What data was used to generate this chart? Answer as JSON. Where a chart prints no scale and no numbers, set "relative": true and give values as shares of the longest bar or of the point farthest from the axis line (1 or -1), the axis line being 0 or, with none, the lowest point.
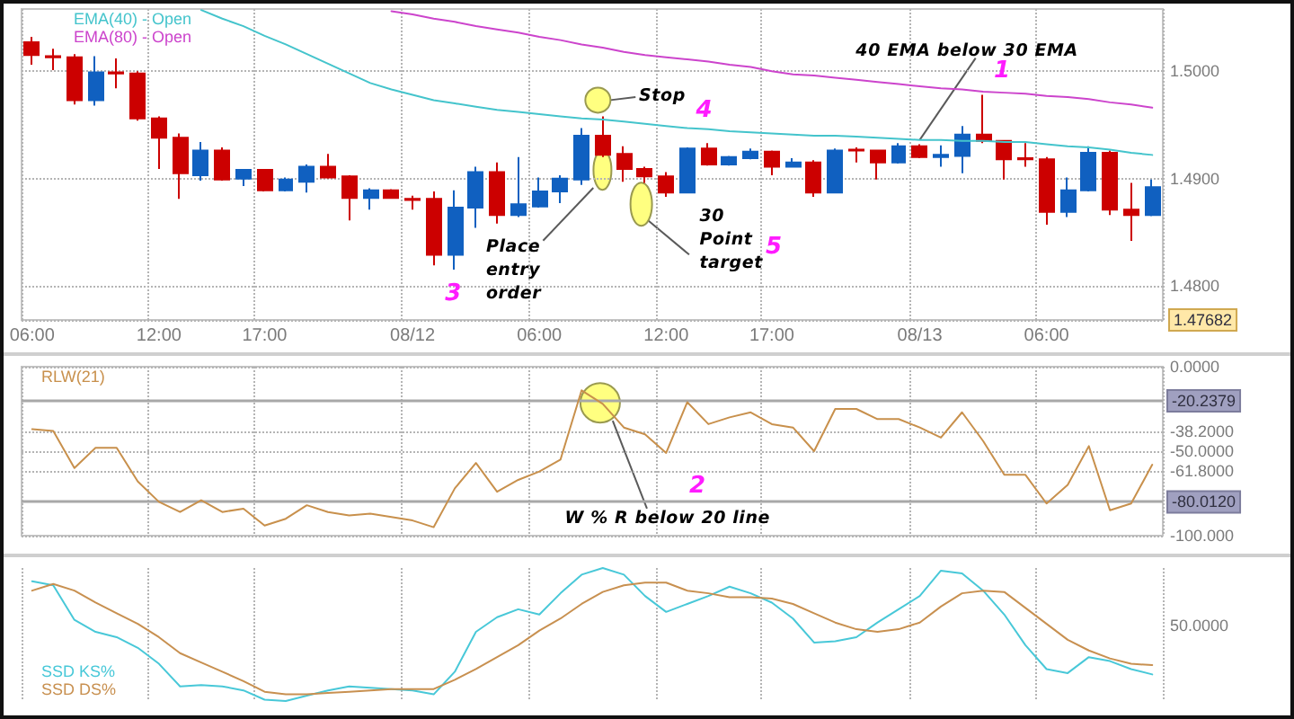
{
  "chart_data": [
    {
      "type": "candlestick",
      "categories": [
        "06:00",
        null,
        null,
        null,
        null,
        null,
        "12:00",
        null,
        null,
        null,
        null,
        "17:00",
        null,
        null,
        null,
        null,
        null,
        null,
        "08/12",
        null,
        null,
        null,
        null,
        null,
        "06:00",
        null,
        null,
        null,
        null,
        null,
        "12:00",
        null,
        null,
        null,
        null,
        "17:00",
        null,
        null,
        null,
        null,
        null,
        null,
        "08/13",
        null,
        null,
        null,
        null,
        null,
        "06:00",
        null,
        null,
        null,
        null,
        null
      ],
      "ohlc": [
        [
          1.5027,
          1.5032,
          1.5006,
          1.5015
        ],
        [
          1.5014,
          1.5021,
          1.5001,
          1.5013
        ],
        [
          1.5013,
          1.5016,
          1.4969,
          1.4973
        ],
        [
          1.4973,
          1.5014,
          1.4968,
          1.4999
        ],
        [
          1.4999,
          1.5012,
          1.4984,
          1.4998
        ],
        [
          1.4998,
          1.5,
          1.4954,
          1.4956
        ],
        [
          1.4956,
          1.4958,
          1.4909,
          1.4938
        ],
        [
          1.4938,
          1.4942,
          1.4881,
          1.4905
        ],
        [
          1.4903,
          1.4934,
          1.4898,
          1.4926
        ],
        [
          1.4926,
          1.4929,
          1.4898,
          1.4899
        ],
        [
          1.49,
          1.4909,
          1.4893,
          1.4908
        ],
        [
          1.4908,
          1.4909,
          1.4888,
          1.4889
        ],
        [
          1.4889,
          1.4901,
          1.4888,
          1.4899
        ],
        [
          1.4897,
          1.4913,
          1.4887,
          1.4911
        ],
        [
          1.4911,
          1.4923,
          1.49,
          1.4901
        ],
        [
          1.4902,
          1.4903,
          1.4861,
          1.4882
        ],
        [
          1.4882,
          1.4891,
          1.4871,
          1.4889
        ],
        [
          1.4889,
          1.489,
          1.4881,
          1.4882
        ],
        [
          1.4881,
          1.4884,
          1.4871,
          1.488
        ],
        [
          1.4881,
          1.4888,
          1.4819,
          1.4829
        ],
        [
          1.4829,
          1.4889,
          1.4815,
          1.4873
        ],
        [
          1.4873,
          1.4911,
          1.4854,
          1.4906
        ],
        [
          1.4906,
          1.4915,
          1.4858,
          1.4866
        ],
        [
          1.4866,
          1.492,
          1.4864,
          1.4876
        ],
        [
          1.4874,
          1.4901,
          1.4873,
          1.4888
        ],
        [
          1.4888,
          1.4903,
          1.4877,
          1.49
        ],
        [
          1.4899,
          1.4947,
          1.4894,
          1.494
        ],
        [
          1.494,
          1.4958,
          1.492,
          1.4922
        ],
        [
          1.4923,
          1.493,
          1.4897,
          1.4909
        ],
        [
          1.4909,
          1.4911,
          1.4896,
          1.4902
        ],
        [
          1.4902,
          1.4906,
          1.4883,
          1.4887
        ],
        [
          1.4887,
          1.4929,
          1.4886,
          1.4928
        ],
        [
          1.4928,
          1.4933,
          1.4912,
          1.4913
        ],
        [
          1.4913,
          1.4921,
          1.4912,
          1.492
        ],
        [
          1.4919,
          1.4928,
          1.4918,
          1.4925
        ],
        [
          1.4925,
          1.4926,
          1.4903,
          1.4911
        ],
        [
          1.4911,
          1.4919,
          1.4911,
          1.4915
        ],
        [
          1.4915,
          1.4917,
          1.4883,
          1.4887
        ],
        [
          1.4887,
          1.4928,
          1.4886,
          1.4926
        ],
        [
          1.4927,
          1.4929,
          1.4915,
          1.4926
        ],
        [
          1.4926,
          1.4927,
          1.4899,
          1.4915
        ],
        [
          1.4915,
          1.4933,
          1.4914,
          1.493
        ],
        [
          1.493,
          1.4932,
          1.4919,
          1.492
        ],
        [
          1.492,
          1.4931,
          1.4911,
          1.4922
        ],
        [
          1.4921,
          1.4949,
          1.4905,
          1.4941
        ],
        [
          1.4941,
          1.4978,
          1.4933,
          1.4935
        ],
        [
          1.4935,
          1.4936,
          1.4899,
          1.4918
        ],
        [
          1.4919,
          1.4933,
          1.4911,
          1.4918
        ],
        [
          1.4918,
          1.492,
          1.4857,
          1.4869
        ],
        [
          1.4869,
          1.4901,
          1.4864,
          1.4889
        ],
        [
          1.4889,
          1.493,
          1.4888,
          1.4924
        ],
        [
          1.4924,
          1.4926,
          1.4866,
          1.4871
        ],
        [
          1.4871,
          1.4896,
          1.4842,
          1.4866
        ],
        [
          1.4866,
          1.4899,
          1.4865,
          1.4892
        ]
      ],
      "colors": [
        "#cc0000",
        "#cc0000",
        "#cc0000",
        "#1060c0",
        "#cc0000",
        "#cc0000",
        "#cc0000",
        "#cc0000",
        "#1060c0",
        "#cc0000",
        "#1060c0",
        "#cc0000",
        "#1060c0",
        "#1060c0",
        "#cc0000",
        "#cc0000",
        "#1060c0",
        "#cc0000",
        "#cc0000",
        "#cc0000",
        "#1060c0",
        "#1060c0",
        "#cc0000",
        "#1060c0",
        "#1060c0",
        "#1060c0",
        "#1060c0",
        "#cc0000",
        "#cc0000",
        "#cc0000",
        "#cc0000",
        "#1060c0",
        "#cc0000",
        "#1060c0",
        "#1060c0",
        "#cc0000",
        "#1060c0",
        "#cc0000",
        "#1060c0",
        "#cc0000",
        "#cc0000",
        "#1060c0",
        "#cc0000",
        "#1060c0",
        "#1060c0",
        "#cc0000",
        "#cc0000",
        "#cc0000",
        "#cc0000",
        "#1060c0",
        "#1060c0",
        "#cc0000",
        "#cc0000",
        "#1060c0"
      ],
      "series": [
        {
          "type": "line",
          "name": "EMA(40) - Open",
          "color": "#44c4cc",
          "values": [
            null,
            null,
            null,
            null,
            null,
            null,
            null,
            null,
            1.5057,
            1.5049,
            1.5042,
            1.5033,
            1.5025,
            1.5016,
            1.5007,
            1.4998,
            1.4989,
            1.4983,
            1.4978,
            1.4973,
            1.497,
            1.4967,
            1.4964,
            1.4962,
            1.496,
            1.4958,
            1.4956,
            1.4955,
            1.4953,
            1.4951,
            1.4949,
            1.4947,
            1.4946,
            1.4944,
            1.4943,
            1.4942,
            1.4941,
            1.494,
            1.494,
            1.4939,
            1.4938,
            1.4937,
            1.4936,
            1.4936,
            1.4935,
            1.4935,
            1.4934,
            1.4934,
            1.4932,
            1.493,
            1.4929,
            1.4927,
            1.4924,
            1.4922
          ]
        },
        {
          "type": "line",
          "name": "EMA(80) - Open",
          "color": "#cc44cc",
          "values": [
            null,
            null,
            null,
            null,
            null,
            null,
            null,
            null,
            null,
            null,
            null,
            null,
            null,
            null,
            null,
            null,
            null,
            1.5056,
            1.5053,
            1.5049,
            1.5046,
            1.5042,
            1.5039,
            1.5036,
            1.5032,
            1.5029,
            1.5025,
            1.5022,
            1.5018,
            1.5015,
            1.5013,
            1.5011,
            1.5009,
            1.5006,
            1.5004,
            1.5,
            1.4997,
            1.4996,
            1.4994,
            1.4992,
            1.499,
            1.4988,
            1.4986,
            1.4984,
            1.4983,
            1.4981,
            1.498,
            1.4979,
            1.4977,
            1.4976,
            1.4974,
            1.4971,
            1.4969,
            1.4966
          ]
        }
      ],
      "ylim": [
        1.47682,
        1.5058
      ],
      "yticks": [
        {
          "value": 1.5,
          "label": "1.5000"
        },
        {
          "value": 1.49,
          "label": "1.4900"
        },
        {
          "value": 1.48,
          "label": "1.4800"
        },
        {
          "value": 1.47682,
          "label": "1.47682"
        }
      ],
      "grid": true,
      "legend": "top left",
      "annotations": [
        {
          "text": "40 EMA below 30 EMA",
          "x": "08/13",
          "y": 1.4936
        },
        "1",
        "Stop",
        "4",
        "Place entry order",
        "3",
        "30 Point target",
        "5"
      ]
    },
    {
      "type": "line",
      "categories": [
        null,
        null,
        null,
        null,
        null,
        null,
        null,
        null,
        null,
        null,
        null,
        null,
        null,
        null,
        null,
        null,
        null,
        null,
        null,
        null,
        null,
        null,
        null,
        null,
        null,
        null,
        null,
        null,
        null,
        null,
        null,
        null,
        null,
        null,
        null,
        null,
        null,
        null,
        null,
        null,
        null,
        null,
        null,
        null,
        null,
        null,
        null,
        null,
        null,
        null,
        null,
        null,
        null,
        null
      ],
      "series": [
        {
          "name": "RLW(21)",
          "color": "#c8904c",
          "values": [
            -37,
            -38,
            -60,
            -48,
            -48,
            -68,
            -80,
            -86,
            -79,
            -86,
            -84,
            -94,
            -90,
            -82,
            -86,
            -88,
            -87,
            -89,
            -91,
            -95,
            -72,
            -57,
            -74,
            -67,
            -62,
            -55,
            -14,
            -22,
            -36,
            -40,
            -51,
            -21,
            -34,
            -30,
            -27,
            -34,
            -36,
            -50,
            -25,
            -25,
            -31,
            -31,
            -36,
            -42,
            -27,
            -44,
            -64,
            -64,
            -81,
            -70,
            -47,
            -85,
            -81,
            -58
          ]
        }
      ],
      "ylim": [
        -100,
        0
      ],
      "yticks": [
        {
          "value": 0,
          "label": "0.0000"
        },
        {
          "value": -38.2,
          "label": "-38.2000"
        },
        {
          "value": -50,
          "label": "-50.0000"
        },
        {
          "value": -61.8,
          "label": "-61.8000"
        },
        {
          "value": -100,
          "label": "-100.000"
        }
      ],
      "ref_lines": [
        {
          "axis": "y",
          "value": -20.2379,
          "label": "-20.2379",
          "color": "#a8a8a8"
        },
        {
          "axis": "y",
          "value": -80.012,
          "label": "-80.0120",
          "color": "#a8a8a8"
        }
      ],
      "grid": true,
      "legend": "top left",
      "tick_labels": "y",
      "annotations": [
        "W % R below 20 line",
        "2"
      ]
    },
    {
      "type": "line",
      "relative": true,
      "categories": [
        null,
        null,
        null,
        null,
        null,
        null,
        null,
        null,
        null,
        null,
        null,
        null,
        null,
        null,
        null,
        null,
        null,
        null,
        null,
        null,
        null,
        null,
        null,
        null,
        null,
        null,
        null,
        null,
        null,
        null,
        null,
        null,
        null,
        null,
        null,
        null,
        null,
        null,
        null,
        null,
        null,
        null,
        null,
        null,
        null,
        null,
        null,
        null,
        null,
        null,
        null,
        null,
        null,
        null
      ],
      "series": [
        {
          "name": "SSD KS%",
          "color": "#48c8d8",
          "values": [
            0.9,
            0.87,
            0.61,
            0.52,
            0.48,
            0.4,
            0.28,
            0.11,
            0.12,
            0.11,
            0.08,
            0.01,
            0,
            0.04,
            0.08,
            0.11,
            0.1,
            0.09,
            0.08,
            0.05,
            0.22,
            0.52,
            0.63,
            0.69,
            0.65,
            0.81,
            0.95,
            1,
            0.95,
            0.79,
            0.67,
            0.73,
            0.79,
            0.86,
            0.81,
            0.74,
            0.62,
            0.44,
            0.45,
            0.48,
            0.59,
            0.69,
            0.79,
            0.98,
            0.96,
            0.83,
            0.65,
            0.42,
            0.24,
            0.21,
            0.33,
            0.3,
            0.24,
            0.2
          ]
        },
        {
          "name": "SSD DS%",
          "color": "#c89050",
          "values": [
            0.83,
            0.88,
            0.83,
            0.74,
            0.66,
            0.58,
            0.48,
            0.36,
            0.29,
            0.22,
            0.15,
            0.07,
            0.05,
            0.05,
            0.06,
            0.07,
            0.08,
            0.09,
            0.09,
            0.09,
            0.16,
            0.24,
            0.33,
            0.42,
            0.53,
            0.62,
            0.73,
            0.82,
            0.87,
            0.89,
            0.89,
            0.83,
            0.81,
            0.78,
            0.78,
            0.77,
            0.73,
            0.66,
            0.59,
            0.54,
            0.52,
            0.54,
            0.59,
            0.71,
            0.81,
            0.83,
            0.82,
            0.7,
            0.58,
            0.46,
            0.38,
            0.32,
            0.28,
            0.27
          ]
        }
      ],
      "grid": "x",
      "legend": "bottom left",
      "tick_labels": false,
      "annotations": [
        "50.0000"
      ]
    }
  ]
}
